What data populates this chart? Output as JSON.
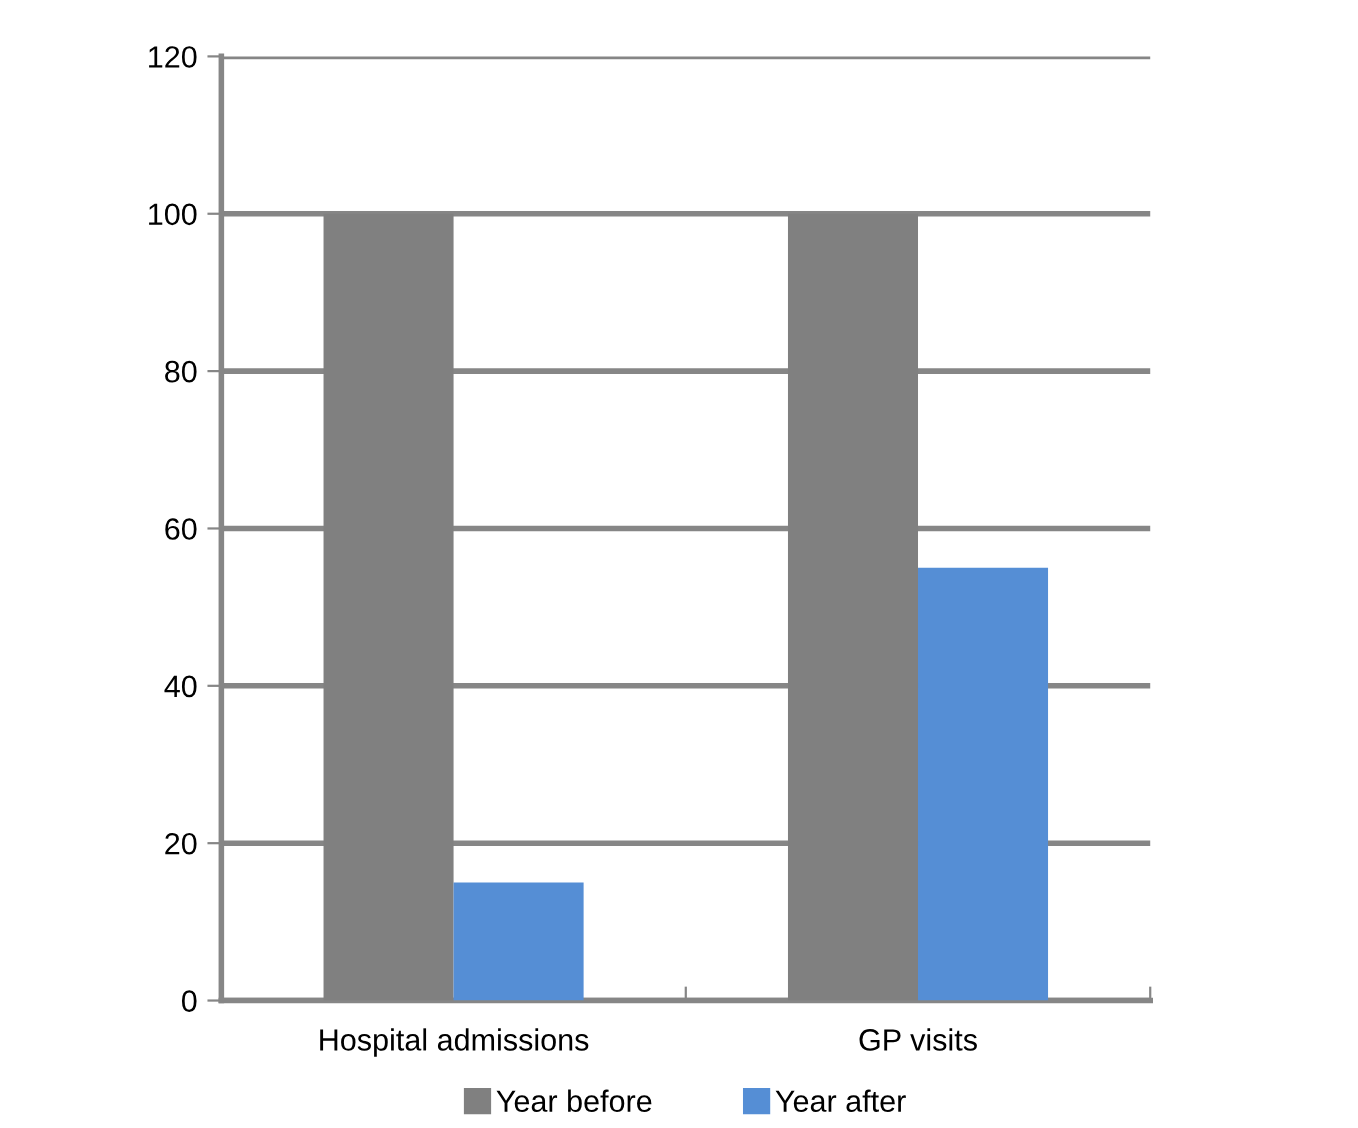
{
  "chart_data": {
    "type": "bar",
    "categories": [
      "Hospital admissions",
      "GP visits"
    ],
    "series": [
      {
        "name": "Year before",
        "color": "#808080",
        "values": [
          100,
          100
        ]
      },
      {
        "name": "Year after",
        "color": "#558ed5",
        "values": [
          15,
          55
        ]
      }
    ],
    "ylim": [
      0,
      120
    ],
    "yticks": [
      0,
      20,
      40,
      60,
      80,
      100,
      120
    ],
    "grid": "y",
    "legend": "bottom"
  }
}
